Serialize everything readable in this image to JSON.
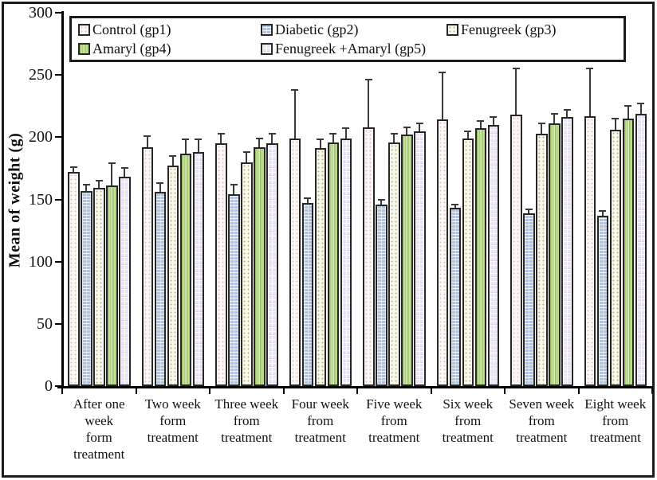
{
  "figure": {
    "kind": "static-bar-chart-figure"
  },
  "colors": {
    "frame": "#1c1c1c",
    "axis": "#000000",
    "bar_border": "#262626",
    "background": "#ffffff",
    "control_fill": "#fcf7f5",
    "diabetic_fill": "#a9c3e9",
    "fenugreek_fill": "#f8f7ec",
    "amaryl_fill": "#bcd98f",
    "fenugreek_amaryl_fill": "#ebe4f6"
  },
  "chart_data": {
    "type": "bar",
    "title": "",
    "xlabel": "",
    "ylabel": "Mean of weight (g)",
    "ylim": [
      0,
      300
    ],
    "yticks": [
      0,
      50,
      100,
      150,
      200,
      250,
      300
    ],
    "grid": false,
    "legend_position": "top-inside-box",
    "error_bars": "upper",
    "categories": [
      "After one week form treatment",
      "Two week form treatment",
      "Three week from treatment",
      "Four week from treatment",
      "Five week from treatment",
      "Six week from treatment",
      "Seven week from treatment",
      "Eight week from treatment"
    ],
    "category_lines": [
      [
        "After one",
        "week",
        "form",
        "treatment"
      ],
      [
        "Two week",
        "form",
        "treatment"
      ],
      [
        "Three week",
        "from",
        "treatment"
      ],
      [
        "Four week",
        "from",
        "treatment"
      ],
      [
        "Five week",
        "from",
        "treatment"
      ],
      [
        "Six week",
        "from",
        "treatment"
      ],
      [
        "Seven week",
        "from",
        "treatment"
      ],
      [
        "Eight week",
        "from",
        "treatment"
      ]
    ],
    "series": [
      {
        "name": "Control (gp1)",
        "key": "control",
        "pattern": "pink-dot-texture",
        "values": [
          172,
          192,
          195,
          199,
          208,
          214,
          218,
          217
        ],
        "errors": [
          4,
          9,
          8,
          39,
          38,
          38,
          37,
          38
        ]
      },
      {
        "name": "Diabetic (gp2)",
        "key": "diabetic",
        "pattern": "blue-brick-texture",
        "values": [
          157,
          156,
          154,
          147,
          146,
          143,
          139,
          137
        ],
        "errors": [
          5,
          7,
          8,
          4,
          4,
          3,
          3,
          4
        ]
      },
      {
        "name": "Fenugreek (gp3)",
        "key": "fenugreek",
        "pattern": "cream-dot-texture",
        "values": [
          159,
          177,
          180,
          191,
          196,
          199,
          203,
          206
        ],
        "errors": [
          6,
          8,
          8,
          7,
          7,
          6,
          8,
          9
        ]
      },
      {
        "name": "Amaryl (gp4)",
        "key": "amaryl",
        "pattern": "green-vertical-stripes",
        "values": [
          161,
          187,
          192,
          196,
          202,
          207,
          211,
          215
        ],
        "errors": [
          18,
          11,
          7,
          7,
          6,
          6,
          8,
          10
        ]
      },
      {
        "name": "Fenugreek +Amaryl (gp5)",
        "key": "fenamaryl",
        "pattern": "lavender-grid-texture",
        "values": [
          168,
          188,
          195,
          199,
          205,
          210,
          216,
          219
        ],
        "errors": [
          7,
          10,
          8,
          8,
          6,
          6,
          6,
          8
        ]
      }
    ],
    "legend_rows": [
      [
        0,
        1,
        2
      ],
      [
        3,
        4
      ]
    ]
  }
}
